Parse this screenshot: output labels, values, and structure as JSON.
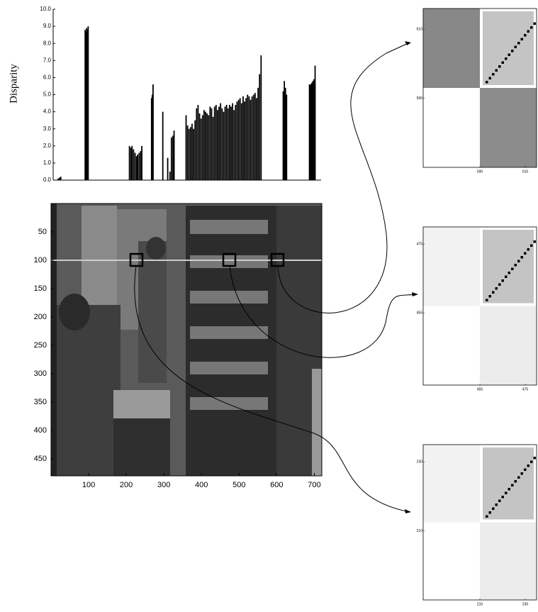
{
  "chart_data": [
    {
      "type": "bar",
      "ylabel": "Disparity",
      "color": "#000000",
      "x": [
        19,
        23,
        26,
        91,
        93,
        95,
        97,
        99,
        209,
        213,
        216,
        220,
        224,
        228,
        231,
        235,
        239,
        242,
        268,
        270,
        272,
        298,
        311,
        317,
        321,
        325,
        328,
        360,
        364,
        368,
        372,
        376,
        380,
        384,
        388,
        392,
        396,
        400,
        404,
        408,
        412,
        416,
        420,
        424,
        428,
        432,
        436,
        440,
        444,
        448,
        452,
        456,
        460,
        464,
        468,
        472,
        476,
        480,
        484,
        488,
        492,
        496,
        500,
        504,
        508,
        512,
        516,
        520,
        524,
        528,
        532,
        536,
        540,
        544,
        548,
        552,
        556,
        560,
        619,
        622,
        625,
        628,
        689,
        692,
        695,
        698,
        701,
        704
      ],
      "values": [
        0.1,
        0.15,
        0.2,
        8.8,
        8.7,
        8.9,
        8.8,
        9.0,
        2.0,
        1.9,
        2.0,
        1.8,
        1.6,
        1.4,
        1.5,
        1.6,
        1.7,
        2.0,
        4.8,
        5.0,
        5.6,
        4.0,
        1.3,
        0.5,
        2.5,
        2.6,
        2.9,
        3.8,
        3.2,
        3.0,
        3.1,
        3.3,
        3.0,
        3.5,
        4.2,
        4.4,
        3.9,
        3.6,
        3.8,
        4.1,
        4.0,
        3.9,
        3.8,
        4.3,
        4.2,
        3.7,
        4.3,
        4.4,
        4.1,
        4.3,
        4.5,
        4.2,
        4.0,
        4.3,
        4.4,
        4.2,
        4.4,
        4.3,
        4.5,
        4.1,
        4.4,
        4.6,
        4.7,
        4.8,
        4.5,
        4.9,
        4.6,
        4.8,
        5.0,
        4.9,
        4.7,
        4.9,
        5.0,
        5.1,
        4.8,
        5.4,
        6.2,
        7.3,
        5.2,
        5.8,
        5.4,
        5.0,
        5.6,
        5.6,
        5.7,
        5.8,
        5.9,
        6.7
      ],
      "xlim": [
        0,
        720
      ],
      "ylim": [
        0,
        10
      ],
      "yticks": [
        {
          "value": 0,
          "label": "0.0"
        },
        {
          "value": 1,
          "label": "1.0"
        },
        {
          "value": 2,
          "label": "2.0"
        },
        {
          "value": 3,
          "label": "3.0"
        },
        {
          "value": 4,
          "label": "4.0"
        },
        {
          "value": 5,
          "label": "5.0"
        },
        {
          "value": 6,
          "label": "6.0"
        },
        {
          "value": 7,
          "label": "7.0"
        },
        {
          "value": 8,
          "label": "8.0"
        },
        {
          "value": 9,
          "label": "9.0"
        },
        {
          "value": 10,
          "label": "10.0"
        }
      ]
    },
    {
      "type": "image",
      "xlim": [
        0,
        720
      ],
      "ylim": [
        0,
        480
      ],
      "y_inverted": true,
      "xticks": [
        100,
        200,
        300,
        400,
        500,
        600,
        700
      ],
      "yticks": [
        50,
        100,
        150,
        200,
        250,
        300,
        350,
        400,
        450
      ]
    },
    {
      "type": "matrix",
      "xlim": [
        565,
        615
      ],
      "ylim": [
        616,
        570
      ],
      "xticks": [
        590,
        610
      ],
      "yticks": [
        590,
        610
      ]
    },
    {
      "type": "matrix",
      "xlim": [
        430,
        480
      ],
      "ylim": [
        480,
        434
      ],
      "xticks": [
        455,
        475
      ],
      "yticks": [
        455,
        475
      ]
    },
    {
      "type": "matrix",
      "xlim": [
        185,
        235
      ],
      "ylim": [
        235,
        190
      ],
      "xticks": [
        210,
        230
      ],
      "yticks": [
        210,
        230
      ]
    }
  ]
}
